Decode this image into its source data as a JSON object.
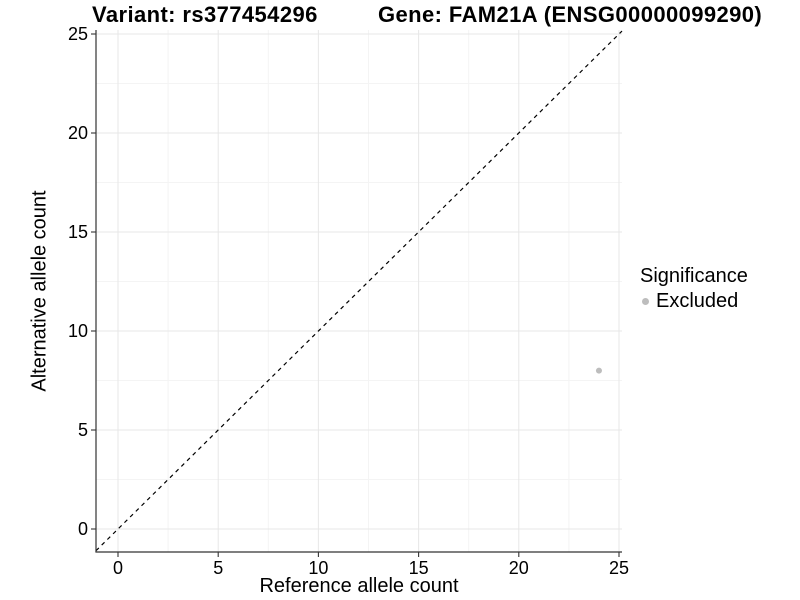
{
  "figure": {
    "title_left": "Variant: rs377454296",
    "title_right": "Gene: FAM21A (ENSG00000099290)"
  },
  "chart_data": {
    "type": "scatter",
    "xlabel": "Reference allele count",
    "ylabel": "Alternative allele count",
    "xlim": [
      -1.1,
      25.15
    ],
    "ylim": [
      -1.16,
      25.2
    ],
    "x_ticks": [
      0,
      5,
      10,
      15,
      20,
      25
    ],
    "y_ticks": [
      0,
      5,
      10,
      15,
      20,
      25
    ],
    "x_minor_ticks": [
      2.5,
      7.5,
      12.5,
      17.5,
      22.5
    ],
    "y_minor_ticks": [
      2.5,
      7.5,
      12.5,
      17.5,
      22.5
    ],
    "grid": true,
    "reference_line": {
      "type": "identity",
      "slope": 1,
      "intercept": 0,
      "style": "dashed"
    },
    "series": [
      {
        "name": "Excluded",
        "color": "#bdbdbd",
        "points": [
          {
            "x": 24,
            "y": 8
          }
        ]
      }
    ],
    "legend": {
      "title": "Significance",
      "position": "right",
      "items": [
        {
          "label": "Excluded",
          "color": "#bdbdbd"
        }
      ]
    },
    "colors": {
      "point": "#bdbdbd",
      "grid_major": "#e7e7e7",
      "grid_minor": "#f4f4f4",
      "axis": "#333333",
      "tick_text": "#000000",
      "reference_line": "#000000"
    }
  }
}
